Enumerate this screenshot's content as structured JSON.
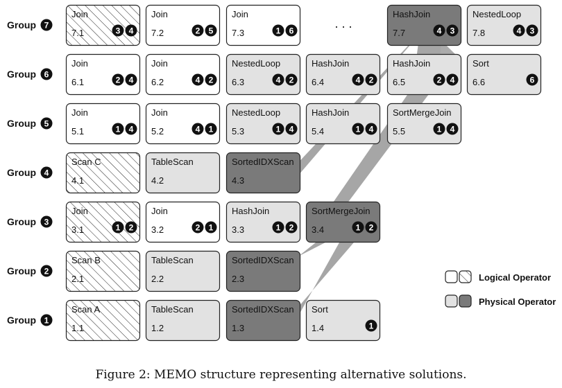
{
  "colors": {
    "logical_fill": "#ffffff",
    "physical_light": "#e2e2e2",
    "physical_dark": "#7a7a7a",
    "connector": "#a6a6a6",
    "stroke": "#222222"
  },
  "groups": [
    {
      "label": "Group",
      "number": "7",
      "nodes": [
        {
          "name": "Join",
          "id": "7.1",
          "kind": "logical",
          "children": [
            "3",
            "4"
          ]
        },
        {
          "name": "Join",
          "id": "7.2",
          "kind": "logical-plain",
          "children": [
            "2",
            "5"
          ]
        },
        {
          "name": "Join",
          "id": "7.3",
          "kind": "logical-plain",
          "children": [
            "1",
            "6"
          ]
        },
        {
          "name": "HashJoin",
          "id": "7.7",
          "kind": "physical-dark",
          "children": [
            "4",
            "3"
          ]
        },
        {
          "name": "NestedLoop",
          "id": "7.8",
          "kind": "physical-light",
          "children": [
            "4",
            "3"
          ]
        }
      ]
    },
    {
      "label": "Group",
      "number": "6",
      "nodes": [
        {
          "name": "Join",
          "id": "6.1",
          "kind": "logical-plain",
          "children": [
            "2",
            "4"
          ]
        },
        {
          "name": "Join",
          "id": "6.2",
          "kind": "logical-plain",
          "children": [
            "4",
            "2"
          ]
        },
        {
          "name": "NestedLoop",
          "id": "6.3",
          "kind": "physical-light",
          "children": [
            "4",
            "2"
          ]
        },
        {
          "name": "HashJoin",
          "id": "6.4",
          "kind": "physical-light",
          "children": [
            "4",
            "2"
          ]
        },
        {
          "name": "HashJoin",
          "id": "6.5",
          "kind": "physical-light",
          "children": [
            "2",
            "4"
          ]
        },
        {
          "name": "Sort",
          "id": "6.6",
          "kind": "physical-light",
          "children": [
            "6"
          ]
        }
      ]
    },
    {
      "label": "Group",
      "number": "5",
      "nodes": [
        {
          "name": "Join",
          "id": "5.1",
          "kind": "logical-plain",
          "children": [
            "1",
            "4"
          ]
        },
        {
          "name": "Join",
          "id": "5.2",
          "kind": "logical-plain",
          "children": [
            "4",
            "1"
          ]
        },
        {
          "name": "NestedLoop",
          "id": "5.3",
          "kind": "physical-light",
          "children": [
            "1",
            "4"
          ]
        },
        {
          "name": "HashJoin",
          "id": "5.4",
          "kind": "physical-light",
          "children": [
            "1",
            "4"
          ]
        },
        {
          "name": "SortMergeJoin",
          "id": "5.5",
          "kind": "physical-light",
          "children": [
            "1",
            "4"
          ]
        }
      ]
    },
    {
      "label": "Group",
      "number": "4",
      "nodes": [
        {
          "name": "Scan C",
          "id": "4.1",
          "kind": "logical",
          "children": []
        },
        {
          "name": "TableScan",
          "id": "4.2",
          "kind": "physical-light",
          "children": []
        },
        {
          "name": "SortedIDXScan",
          "id": "4.3",
          "kind": "physical-dark",
          "children": []
        }
      ]
    },
    {
      "label": "Group",
      "number": "3",
      "nodes": [
        {
          "name": "Join",
          "id": "3.1",
          "kind": "logical",
          "children": [
            "1",
            "2"
          ]
        },
        {
          "name": "Join",
          "id": "3.2",
          "kind": "logical-plain",
          "children": [
            "2",
            "1"
          ]
        },
        {
          "name": "HashJoin",
          "id": "3.3",
          "kind": "physical-light",
          "children": [
            "1",
            "2"
          ]
        },
        {
          "name": "SortMergeJoin",
          "id": "3.4",
          "kind": "physical-dark",
          "children": [
            "1",
            "2"
          ]
        }
      ]
    },
    {
      "label": "Group",
      "number": "2",
      "nodes": [
        {
          "name": "Scan B",
          "id": "2.1",
          "kind": "logical",
          "children": []
        },
        {
          "name": "TableScan",
          "id": "2.2",
          "kind": "physical-light",
          "children": []
        },
        {
          "name": "SortedIDXScan",
          "id": "2.3",
          "kind": "physical-dark",
          "children": []
        }
      ]
    },
    {
      "label": "Group",
      "number": "1",
      "nodes": [
        {
          "name": "Scan A",
          "id": "1.1",
          "kind": "logical",
          "children": []
        },
        {
          "name": "TableScan",
          "id": "1.2",
          "kind": "physical-light",
          "children": []
        },
        {
          "name": "SortedIDXScan",
          "id": "1.3",
          "kind": "physical-dark",
          "children": []
        },
        {
          "name": "Sort",
          "id": "1.4",
          "kind": "physical-light",
          "children": [
            "1"
          ]
        }
      ]
    }
  ],
  "ellipsis": ". . .",
  "legend": {
    "logical": "Logical Operator",
    "physical": "Physical Operator"
  },
  "connections": [
    {
      "from": "7.7",
      "to": "6.5"
    },
    {
      "from": "7.7",
      "to": "4.3"
    },
    {
      "from": "6.5",
      "to": "3.4"
    },
    {
      "from": "3.4",
      "to": "2.3"
    },
    {
      "from": "3.4",
      "to": "1.3"
    }
  ],
  "caption": "Figure 2: MEMO structure representing alternative solutions."
}
